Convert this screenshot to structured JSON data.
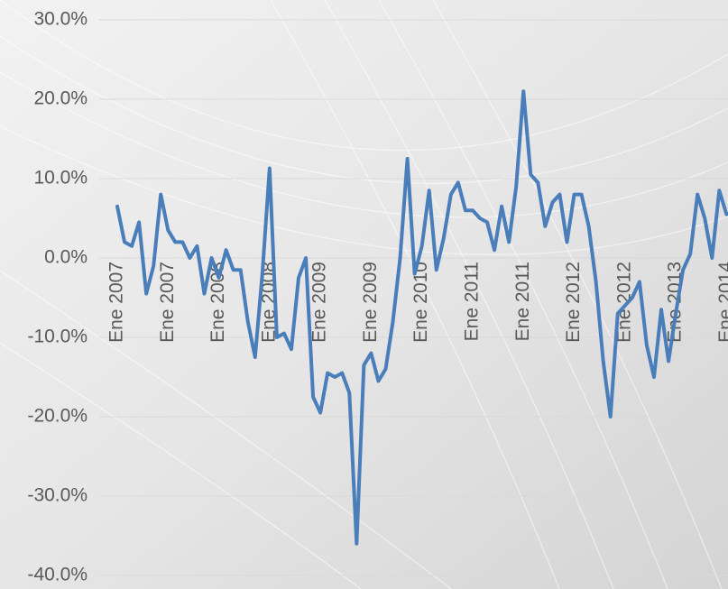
{
  "chart_data": {
    "type": "line",
    "categories": [
      "Ene 2007",
      null,
      null,
      null,
      null,
      null,
      null,
      "Ene 2007",
      null,
      null,
      null,
      null,
      null,
      null,
      "Ene 2008",
      null,
      null,
      null,
      null,
      null,
      null,
      "Ene 2008",
      null,
      null,
      null,
      null,
      null,
      null,
      "Ene 2009",
      null,
      null,
      null,
      null,
      null,
      null,
      "Ene 2009",
      null,
      null,
      null,
      null,
      null,
      null,
      "Ene 2010",
      null,
      null,
      null,
      null,
      null,
      null,
      "Ene 2011",
      null,
      null,
      null,
      null,
      null,
      null,
      "Ene 2011",
      null,
      null,
      null,
      null,
      null,
      null,
      "Ene 2012",
      null,
      null,
      null,
      null,
      null,
      null,
      "Ene 2012",
      null,
      null,
      null,
      null,
      null,
      null,
      "Ene 2013",
      null,
      null,
      null,
      null,
      null,
      null,
      "Ene 2014"
    ],
    "values": [
      6.5,
      2,
      1.5,
      4.5,
      -4.5,
      -1,
      8,
      3.5,
      2,
      2,
      0,
      1.5,
      -4.5,
      0,
      -2.5,
      1,
      -1.5,
      -1.5,
      -8,
      -12.5,
      -2,
      11.3,
      -10,
      -9.5,
      -11.5,
      -2.5,
      0,
      -17.5,
      -19.5,
      -14.5,
      -15,
      -14.5,
      -17,
      -36,
      -13.5,
      -12,
      -15.5,
      -14,
      -8,
      0,
      12.5,
      -2,
      1.5,
      8.5,
      -1.5,
      2.5,
      8,
      9.5,
      6,
      6,
      5,
      4.5,
      1,
      6.5,
      2,
      9,
      21,
      10.5,
      9.5,
      4,
      7,
      8,
      2,
      8,
      8,
      4,
      -3,
      -13,
      -20,
      -7,
      -6,
      -5,
      -3,
      -11,
      -15,
      -6.5,
      -13,
      -7,
      -1.5,
      0.5,
      8,
      5,
      0,
      8.5,
      5.5
    ],
    "color": "#4a7ebb",
    "ylim": [
      -40,
      30
    ],
    "yticks": [
      {
        "value": -40,
        "label": "-40.0%"
      },
      {
        "value": -30,
        "label": "-30.0%"
      },
      {
        "value": -20,
        "label": "-20.0%"
      },
      {
        "value": -10,
        "label": "-10.0%"
      },
      {
        "value": 0,
        "label": "0.0%"
      },
      {
        "value": 10,
        "label": "10.0%"
      },
      {
        "value": 20,
        "label": "20.0%"
      },
      {
        "value": 30,
        "label": "30.0%"
      }
    ],
    "grid": true
  }
}
